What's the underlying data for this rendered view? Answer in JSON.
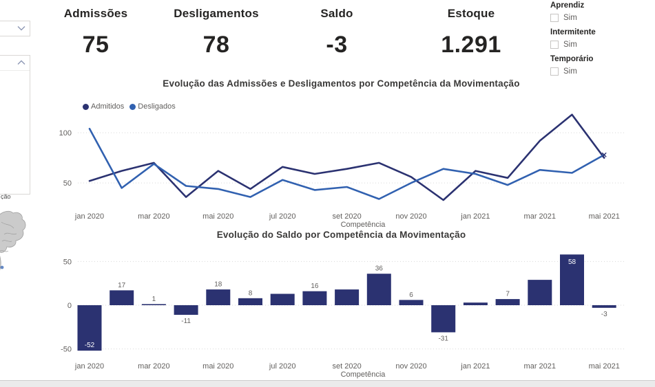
{
  "cards": [
    {
      "label": "Admissões",
      "value": "75"
    },
    {
      "label": "Desligamentos",
      "value": "78"
    },
    {
      "label": "Saldo",
      "value": "-3"
    },
    {
      "label": "Estoque",
      "value": "1.291"
    }
  ],
  "slicers": [
    {
      "title": "Aprendiz",
      "option": "Sim",
      "checked": false
    },
    {
      "title": "Intermitente",
      "option": "Sim",
      "checked": false
    },
    {
      "title": "Temporário",
      "option": "Sim",
      "checked": false
    }
  ],
  "left_panel": {
    "clipped_text": "ção"
  },
  "colors": {
    "admitidos": "#2b3271",
    "desligados": "#3161b0",
    "bar": "#2b3271",
    "axis_text": "#605e5c",
    "gridline": "#d8d8d8"
  },
  "chart_data": [
    {
      "type": "line",
      "title": "Evolução das Admissões e Desligamentos por Competência da Movimentação",
      "xlabel": "Competência",
      "categories": [
        "jan 2020",
        "fev 2020",
        "mar 2020",
        "abr 2020",
        "mai 2020",
        "jun 2020",
        "jul 2020",
        "ago 2020",
        "set 2020",
        "out 2020",
        "nov 2020",
        "dez 2020",
        "jan 2021",
        "fev 2021",
        "mar 2021",
        "abr 2021",
        "mai 2021"
      ],
      "x_ticks_shown": [
        "jan 2020",
        "mar 2020",
        "mai 2020",
        "jul 2020",
        "set 2020",
        "nov 2020",
        "jan 2021",
        "mar 2021",
        "mai 2021"
      ],
      "series": [
        {
          "name": "Admitidos",
          "color": "#2b3271",
          "values": [
            52,
            62,
            70,
            36,
            62,
            44,
            66,
            59,
            64,
            70,
            56,
            33,
            62,
            55,
            92,
            118,
            75
          ]
        },
        {
          "name": "Desligados",
          "color": "#3161b0",
          "values": [
            104,
            45,
            69,
            47,
            44,
            36,
            53,
            43,
            46,
            34,
            50,
            64,
            59,
            48,
            63,
            60,
            78
          ]
        }
      ],
      "y_ticks": [
        50,
        100
      ],
      "ylim": [
        25,
        125
      ],
      "grid": true,
      "legend_position": "top-left"
    },
    {
      "type": "bar",
      "title": "Evolução do Saldo por Competência da Movimentação",
      "xlabel": "Competência",
      "categories": [
        "jan 2020",
        "fev 2020",
        "mar 2020",
        "abr 2020",
        "mai 2020",
        "jun 2020",
        "jul 2020",
        "ago 2020",
        "set 2020",
        "out 2020",
        "nov 2020",
        "dez 2020",
        "jan 2021",
        "fev 2021",
        "mar 2021",
        "abr 2021",
        "mai 2021"
      ],
      "x_ticks_shown": [
        "jan 2020",
        "mar 2020",
        "mai 2020",
        "jul 2020",
        "set 2020",
        "nov 2020",
        "jan 2021",
        "mar 2021",
        "mai 2021"
      ],
      "values": [
        -52,
        17,
        1,
        -11,
        18,
        8,
        13,
        16,
        18,
        36,
        6,
        -31,
        3,
        7,
        29,
        58,
        -3
      ],
      "shown_labels": [
        -52,
        17,
        1,
        -11,
        18,
        8,
        null,
        16,
        null,
        36,
        6,
        -31,
        null,
        7,
        null,
        58,
        -3
      ],
      "inside_label_indices": [
        0,
        15
      ],
      "bar_color": "#2b3271",
      "y_ticks": [
        -50,
        0,
        50
      ],
      "ylim": [
        -55,
        60
      ],
      "grid": true
    }
  ]
}
